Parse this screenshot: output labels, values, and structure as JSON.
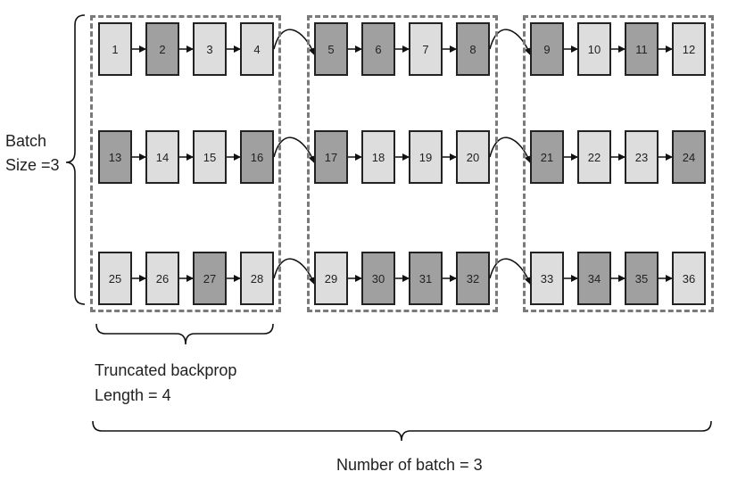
{
  "diagram": {
    "cells": [
      [
        {
          "n": "1",
          "shade": "light"
        },
        {
          "n": "2",
          "shade": "dark"
        },
        {
          "n": "3",
          "shade": "light"
        },
        {
          "n": "4",
          "shade": "light"
        },
        {
          "n": "5",
          "shade": "dark"
        },
        {
          "n": "6",
          "shade": "dark"
        },
        {
          "n": "7",
          "shade": "light"
        },
        {
          "n": "8",
          "shade": "dark"
        },
        {
          "n": "9",
          "shade": "dark"
        },
        {
          "n": "10",
          "shade": "light"
        },
        {
          "n": "11",
          "shade": "dark"
        },
        {
          "n": "12",
          "shade": "light"
        }
      ],
      [
        {
          "n": "13",
          "shade": "dark"
        },
        {
          "n": "14",
          "shade": "light"
        },
        {
          "n": "15",
          "shade": "light"
        },
        {
          "n": "16",
          "shade": "dark"
        },
        {
          "n": "17",
          "shade": "dark"
        },
        {
          "n": "18",
          "shade": "light"
        },
        {
          "n": "19",
          "shade": "light"
        },
        {
          "n": "20",
          "shade": "light"
        },
        {
          "n": "21",
          "shade": "dark"
        },
        {
          "n": "22",
          "shade": "light"
        },
        {
          "n": "23",
          "shade": "light"
        },
        {
          "n": "24",
          "shade": "dark"
        }
      ],
      [
        {
          "n": "25",
          "shade": "light"
        },
        {
          "n": "26",
          "shade": "light"
        },
        {
          "n": "27",
          "shade": "dark"
        },
        {
          "n": "28",
          "shade": "light"
        },
        {
          "n": "29",
          "shade": "light"
        },
        {
          "n": "30",
          "shade": "dark"
        },
        {
          "n": "31",
          "shade": "dark"
        },
        {
          "n": "32",
          "shade": "dark"
        },
        {
          "n": "33",
          "shade": "light"
        },
        {
          "n": "34",
          "shade": "dark"
        },
        {
          "n": "35",
          "shade": "dark"
        },
        {
          "n": "36",
          "shade": "light"
        }
      ]
    ],
    "labels": {
      "batch_size_line1": "Batch",
      "batch_size_line2": "Size =3",
      "truncated_line1": "Truncated backprop",
      "truncated_line2": "Length = 4",
      "num_batch": "Number of batch = 3"
    },
    "colors": {
      "light_cell": "#dddddd",
      "dark_cell": "#a0a0a0",
      "border": "#222222",
      "dashed_group": "#7a7a7a"
    }
  }
}
